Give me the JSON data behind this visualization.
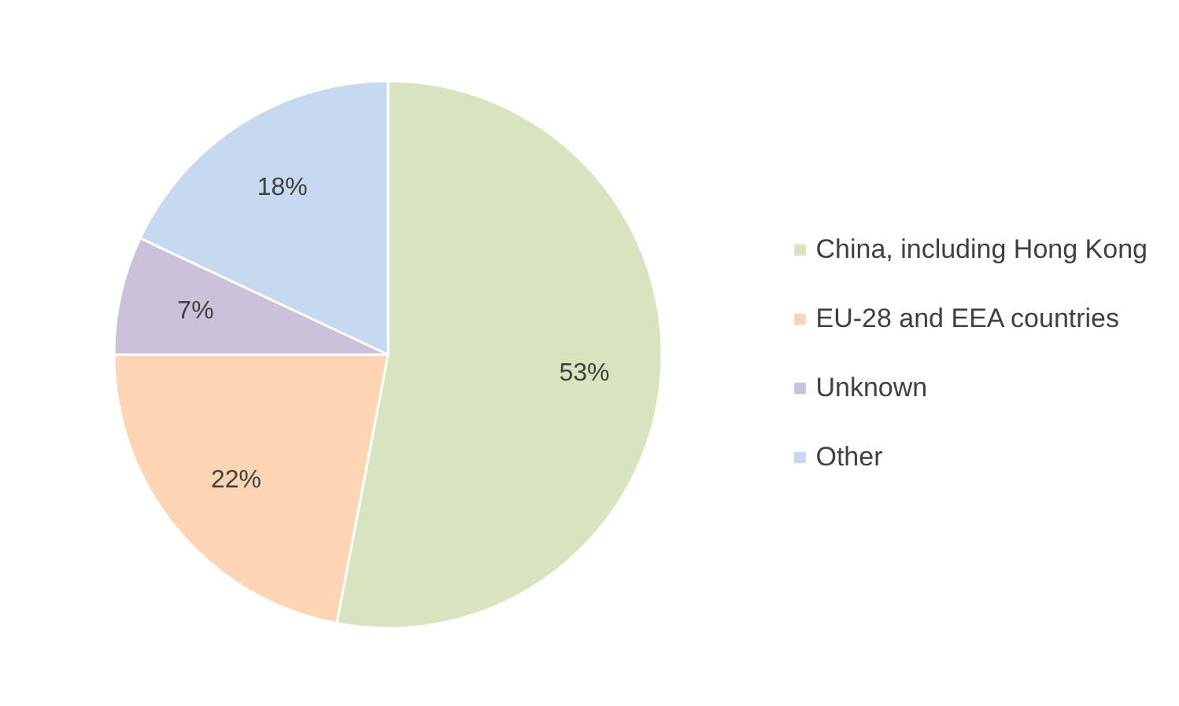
{
  "chart_data": {
    "type": "pie",
    "categories": [
      "China, including Hong Kong",
      "EU-28 and EEA countries",
      "Unknown",
      "Other"
    ],
    "values": [
      53,
      22,
      7,
      18
    ],
    "colors": [
      "#d7e4bd",
      "#fcd5b5",
      "#ccc1da",
      "#c6d9f1"
    ],
    "value_labels": [
      "53%",
      "22%",
      "7%",
      "18%"
    ],
    "legend": "right"
  }
}
